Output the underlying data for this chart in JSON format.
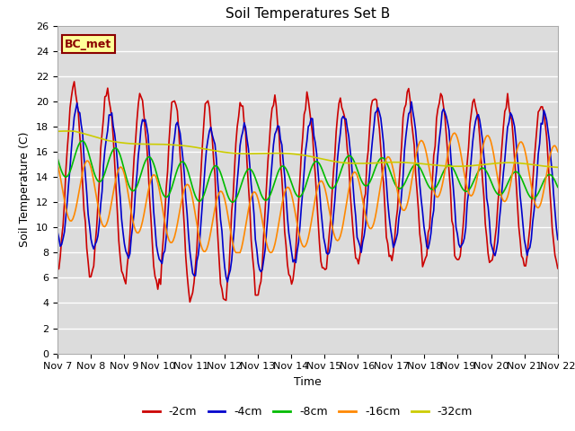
{
  "title": "Soil Temperatures Set B",
  "xlabel": "Time",
  "ylabel": "Soil Temperature (C)",
  "ylim": [
    0,
    26
  ],
  "xlim": [
    0,
    15
  ],
  "background_color": "#dcdcdc",
  "plot_bg_color": "#dcdcdc",
  "grid_color": "white",
  "annotation": "BC_met",
  "annotation_bg": "#ffff99",
  "annotation_border": "#8b0000",
  "x_ticks": [
    0,
    1,
    2,
    3,
    4,
    5,
    6,
    7,
    8,
    9,
    10,
    11,
    12,
    13,
    14,
    15
  ],
  "x_tick_labels": [
    "Nov 7",
    "Nov 8",
    "Nov 9",
    "Nov 10",
    "Nov 11",
    "Nov 12",
    "Nov 13",
    "Nov 14",
    "Nov 15",
    "Nov 16",
    "Nov 17",
    "Nov 18",
    "Nov 19",
    "Nov 20",
    "Nov 21",
    "Nov 22"
  ],
  "y_ticks": [
    0,
    2,
    4,
    6,
    8,
    10,
    12,
    14,
    16,
    18,
    20,
    22,
    24,
    26
  ],
  "series": {
    "-2cm": {
      "color": "#cc0000",
      "lw": 1.2
    },
    "-4cm": {
      "color": "#0000cc",
      "lw": 1.2
    },
    "-8cm": {
      "color": "#00bb00",
      "lw": 1.2
    },
    "-16cm": {
      "color": "#ff8800",
      "lw": 1.2
    },
    "-32cm": {
      "color": "#cccc00",
      "lw": 1.2
    }
  }
}
